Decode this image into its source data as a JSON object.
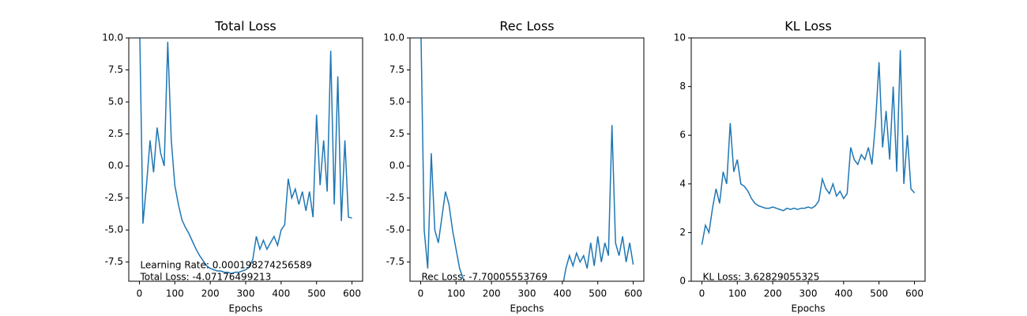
{
  "chart_data": [
    {
      "type": "line",
      "title": "Total Loss",
      "xlabel": "Epochs",
      "color": "#1f77b4",
      "x": [
        0,
        10,
        20,
        30,
        40,
        50,
        60,
        70,
        80,
        90,
        100,
        110,
        120,
        130,
        140,
        150,
        160,
        170,
        180,
        190,
        200,
        210,
        220,
        230,
        240,
        250,
        260,
        270,
        280,
        290,
        300,
        310,
        320,
        330,
        340,
        350,
        360,
        370,
        380,
        390,
        400,
        410,
        420,
        430,
        440,
        450,
        460,
        470,
        480,
        490,
        500,
        510,
        520,
        530,
        540,
        550,
        560,
        570,
        580,
        590,
        600
      ],
      "values": [
        12,
        -4.5,
        -1.5,
        2,
        -0.5,
        3,
        1,
        0,
        9.7,
        2,
        -1.5,
        -3,
        -4.2,
        -4.8,
        -5.3,
        -5.9,
        -6.5,
        -7,
        -7.4,
        -7.8,
        -8,
        -8.1,
        -8.2,
        -8.2,
        -8.3,
        -8.3,
        -8.4,
        -8.3,
        -8.3,
        -8.2,
        -8.1,
        -7.9,
        -7.3,
        -5.5,
        -6.5,
        -5.8,
        -6.5,
        -6,
        -5.5,
        -6.2,
        -5,
        -4.6,
        -1,
        -2.5,
        -1.8,
        -3,
        -2,
        -3.5,
        -2,
        -4,
        4,
        -1.5,
        2,
        -2,
        9,
        -3,
        7,
        -4.3,
        2,
        -4,
        -4.07
      ],
      "xlim": [
        -30,
        630
      ],
      "xticks": [
        0,
        100,
        200,
        300,
        400,
        500,
        600
      ],
      "ylim": [
        -9,
        10
      ],
      "yticks": [
        -7.5,
        {
          "value": -5,
          "label": "-5.0"
        },
        -2.5,
        {
          "value": 0,
          "label": "0.0"
        },
        2.5,
        {
          "value": 5,
          "label": "5.0"
        },
        7.5,
        {
          "value": 10,
          "label": "10.0"
        }
      ],
      "annotations": [
        "Learning Rate: 0.000198274256589",
        "Total Loss: -4.07176499213"
      ]
    },
    {
      "type": "line",
      "title": "Rec Loss",
      "xlabel": "Epochs",
      "color": "#1f77b4",
      "x": [
        0,
        10,
        20,
        30,
        40,
        50,
        60,
        70,
        80,
        90,
        100,
        110,
        120,
        130,
        140,
        150,
        160,
        170,
        180,
        190,
        200,
        210,
        220,
        230,
        240,
        250,
        260,
        270,
        280,
        290,
        300,
        310,
        320,
        330,
        340,
        350,
        360,
        370,
        380,
        390,
        400,
        410,
        420,
        430,
        440,
        450,
        460,
        470,
        480,
        490,
        500,
        510,
        520,
        530,
        540,
        550,
        560,
        570,
        580,
        590,
        600
      ],
      "values": [
        12,
        -5,
        -8,
        1,
        -5,
        -6,
        -4,
        -2,
        -3,
        -5,
        -6.5,
        -8,
        -8.8,
        -9.5,
        -9.5,
        -9.5,
        -9.5,
        -9.5,
        -9.5,
        -9.5,
        -9.5,
        -9.5,
        -9.5,
        -9.5,
        -9.5,
        -9.5,
        -9.5,
        -9.5,
        -9.5,
        -9.5,
        -9.5,
        -9.5,
        -9.5,
        -9.5,
        -9.5,
        -9.5,
        -9.5,
        -9.5,
        -9.5,
        -9.5,
        -9.5,
        -8,
        -7,
        -7.8,
        -6.8,
        -7.5,
        -7,
        -8,
        -6,
        -7.8,
        -5.5,
        -7.5,
        -6,
        -7,
        3.2,
        -6,
        -7,
        -5.5,
        -7.5,
        -6,
        -7.7
      ],
      "xlim": [
        -30,
        630
      ],
      "xticks": [
        0,
        100,
        200,
        300,
        400,
        500,
        600
      ],
      "ylim": [
        -9,
        10
      ],
      "yticks": [
        -7.5,
        {
          "value": -5,
          "label": "-5.0"
        },
        -2.5,
        {
          "value": 0,
          "label": "0.0"
        },
        2.5,
        {
          "value": 5,
          "label": "5.0"
        },
        7.5,
        {
          "value": 10,
          "label": "10.0"
        }
      ],
      "annotations": [
        "Rec Loss: -7.70005553769"
      ]
    },
    {
      "type": "line",
      "title": "KL Loss",
      "xlabel": "Epochs",
      "color": "#1f77b4",
      "x": [
        0,
        10,
        20,
        30,
        40,
        50,
        60,
        70,
        80,
        90,
        100,
        110,
        120,
        130,
        140,
        150,
        160,
        170,
        180,
        190,
        200,
        210,
        220,
        230,
        240,
        250,
        260,
        270,
        280,
        290,
        300,
        310,
        320,
        330,
        340,
        350,
        360,
        370,
        380,
        390,
        400,
        410,
        420,
        430,
        440,
        450,
        460,
        470,
        480,
        490,
        500,
        510,
        520,
        530,
        540,
        550,
        560,
        570,
        580,
        590,
        600
      ],
      "values": [
        1.5,
        2.3,
        2,
        3,
        3.8,
        3.2,
        4.5,
        4,
        6.5,
        4.5,
        5,
        4,
        3.9,
        3.7,
        3.4,
        3.2,
        3.1,
        3.05,
        3,
        3,
        3.05,
        3,
        2.95,
        2.9,
        3,
        2.95,
        3,
        2.95,
        3,
        3,
        3.05,
        3,
        3.1,
        3.3,
        4.2,
        3.8,
        3.6,
        4,
        3.5,
        3.7,
        3.4,
        3.6,
        5.5,
        5,
        4.8,
        5.2,
        5,
        5.5,
        4.8,
        6.5,
        9,
        5.5,
        7,
        5,
        8,
        4.5,
        9.5,
        4,
        6,
        3.8,
        3.63
      ],
      "xlim": [
        -30,
        630
      ],
      "xticks": [
        0,
        100,
        200,
        300,
        400,
        500,
        600
      ],
      "ylim": [
        0,
        10
      ],
      "yticks": [
        0,
        2,
        4,
        6,
        8,
        10
      ],
      "annotations": [
        "KL Loss: 3.62829055325"
      ]
    }
  ]
}
